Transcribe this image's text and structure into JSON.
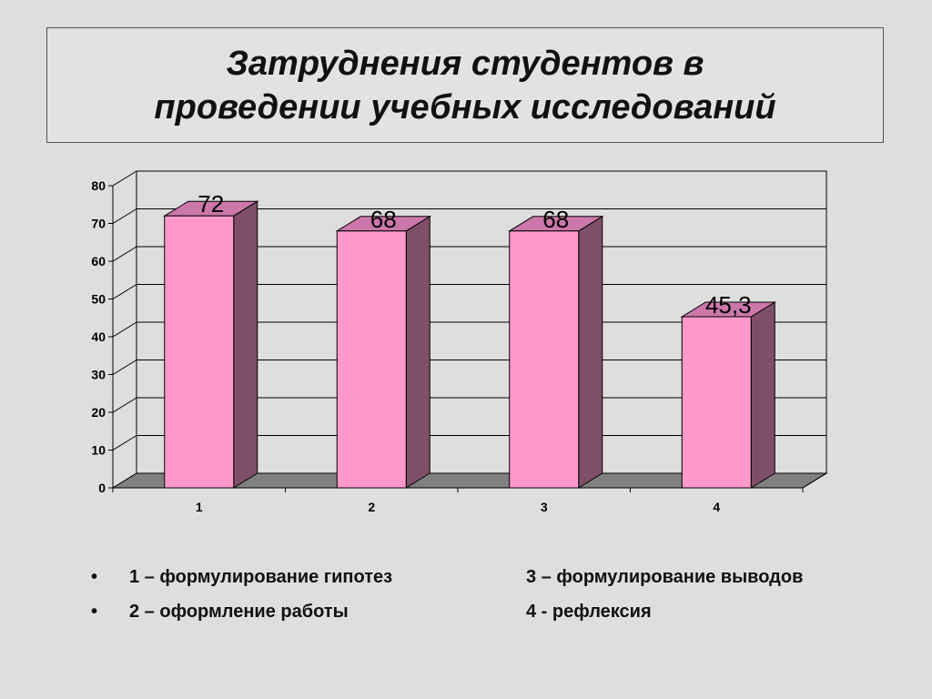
{
  "slide": {
    "title": "Затруднения студентов в\nпроведении учебных исследований"
  },
  "chart_data": {
    "type": "bar",
    "categories": [
      "1",
      "2",
      "3",
      "4"
    ],
    "values": [
      72,
      68,
      68,
      45.3
    ],
    "value_labels": [
      "72",
      "68",
      "68",
      "45,3"
    ],
    "y_ticks": [
      "0",
      "10",
      "20",
      "30",
      "40",
      "50",
      "60",
      "70",
      "80"
    ],
    "ylim": [
      0,
      80
    ],
    "title": "",
    "xlabel": "",
    "ylabel": "",
    "grid": true,
    "style": "3d-columns",
    "colors": {
      "bar_front": "#ff99cc",
      "bar_side": "#7f4f69",
      "bar_top": "#cc77aa",
      "floor": "#808080",
      "plot_background": "#dedede"
    }
  },
  "legend": {
    "bullet": "•",
    "items_left": [
      "1 – формулирование гипотез",
      "2 – оформление работы"
    ],
    "items_right": [
      "3 – формулирование выводов",
      "4 - рефлексия"
    ]
  }
}
